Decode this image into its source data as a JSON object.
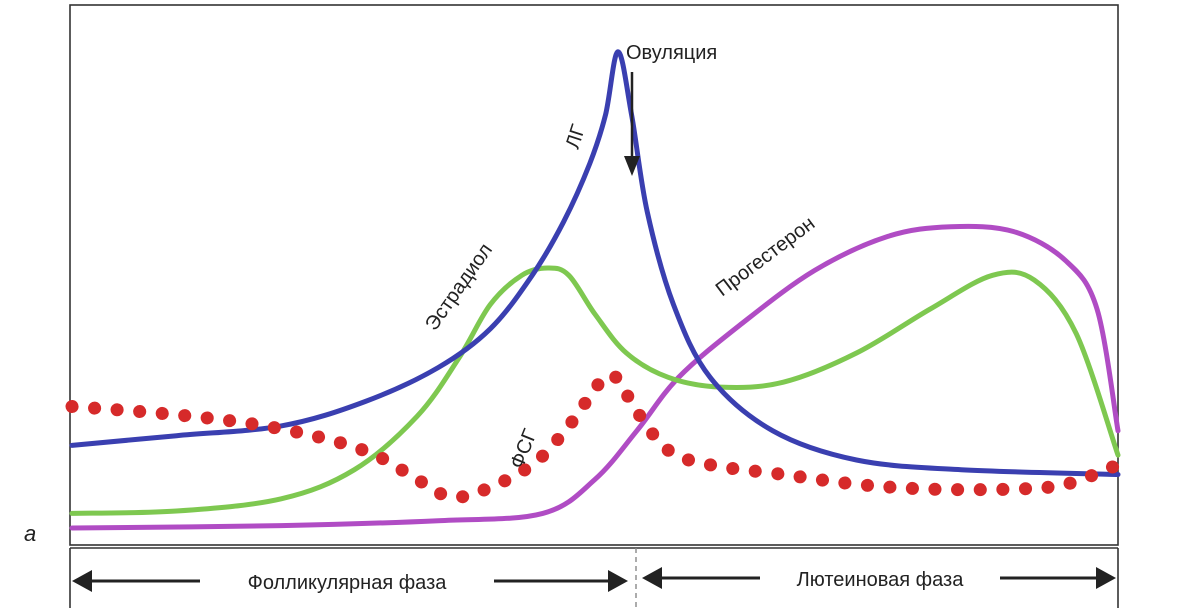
{
  "panel_label": "а",
  "chart_data": {
    "type": "line",
    "x_domain": [
      0,
      100
    ],
    "y_domain": [
      0,
      100
    ],
    "grid": false,
    "legend": "none (series labeled inline)",
    "series": [
      {
        "name": "ЛГ",
        "color": "#3a3fb0",
        "points": [
          [
            0,
            17
          ],
          [
            10,
            19
          ],
          [
            20,
            21
          ],
          [
            28,
            26
          ],
          [
            35,
            33
          ],
          [
            40,
            41
          ],
          [
            44,
            52
          ],
          [
            47,
            63
          ],
          [
            49.5,
            75
          ],
          [
            51,
            85
          ],
          [
            52.2,
            98
          ],
          [
            53.5,
            85
          ],
          [
            55,
            65
          ],
          [
            57.5,
            46
          ],
          [
            61,
            31
          ],
          [
            67,
            20
          ],
          [
            75,
            14
          ],
          [
            85,
            12
          ],
          [
            100,
            11
          ]
        ]
      },
      {
        "name": "Эстрадиол",
        "color": "#7ec850",
        "points": [
          [
            0,
            3
          ],
          [
            10,
            3.5
          ],
          [
            20,
            6
          ],
          [
            27,
            12
          ],
          [
            33,
            23
          ],
          [
            37,
            35
          ],
          [
            40,
            46
          ],
          [
            43,
            52
          ],
          [
            45.5,
            53.5
          ],
          [
            47.5,
            52
          ],
          [
            50,
            44
          ],
          [
            53,
            36
          ],
          [
            57,
            31
          ],
          [
            62,
            29
          ],
          [
            68,
            30
          ],
          [
            75,
            36
          ],
          [
            82,
            45
          ],
          [
            88,
            52
          ],
          [
            92,
            51
          ],
          [
            96,
            40
          ],
          [
            100,
            15
          ]
        ]
      },
      {
        "name": "Прогестерон",
        "color": "#b04cc4",
        "points": [
          [
            0,
            0
          ],
          [
            20,
            0.5
          ],
          [
            35,
            1.5
          ],
          [
            45,
            3
          ],
          [
            50,
            10
          ],
          [
            54,
            20
          ],
          [
            58,
            31
          ],
          [
            64,
            42
          ],
          [
            71,
            53
          ],
          [
            78,
            60
          ],
          [
            84,
            62
          ],
          [
            90,
            61
          ],
          [
            95,
            55
          ],
          [
            98,
            45
          ],
          [
            100,
            20
          ]
        ]
      },
      {
        "name": "ФСГ",
        "color": "#d62a2a",
        "dotted": true,
        "points": [
          [
            0,
            25
          ],
          [
            9,
            23.5
          ],
          [
            17,
            21.5
          ],
          [
            24,
            18.5
          ],
          [
            29,
            15
          ],
          [
            33,
            10
          ],
          [
            36,
            6.5
          ],
          [
            39,
            7.5
          ],
          [
            44,
            13
          ],
          [
            47.5,
            21
          ],
          [
            50.5,
            30
          ],
          [
            52,
            31
          ],
          [
            54,
            24
          ],
          [
            57,
            16
          ],
          [
            61,
            13
          ],
          [
            68,
            11
          ],
          [
            75,
            9
          ],
          [
            82,
            8
          ],
          [
            90,
            8
          ],
          [
            95,
            9
          ],
          [
            100,
            13
          ]
        ]
      }
    ],
    "annotations": {
      "ovulation": "Овуляция",
      "follicular_phase": "Фолликулярная фаза",
      "luteal_phase": "Лютеиновая фаза"
    }
  }
}
